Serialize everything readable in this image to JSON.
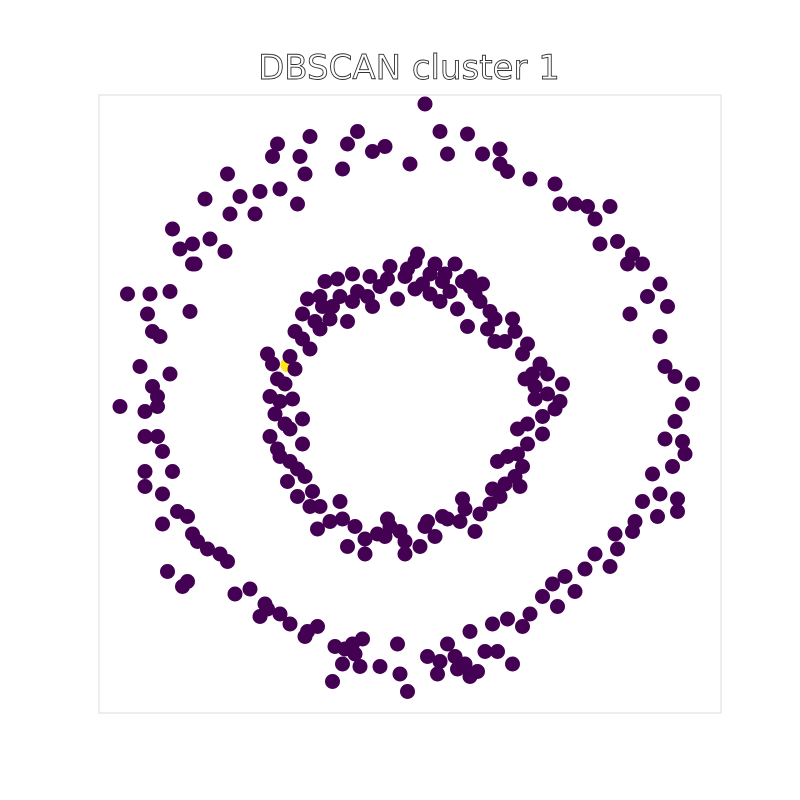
{
  "chart_data": {
    "type": "scatter",
    "title": "DBSCAN  cluster 1",
    "xlabel": "",
    "ylabel": "",
    "xlim": [
      -1.25,
      1.25
    ],
    "ylim": [
      -1.25,
      1.25
    ],
    "axes_visible": false,
    "grid": false,
    "legend": "none",
    "colors": {
      "cluster_member": "#ffe81a",
      "other": "#440154",
      "frame": "#dddddd"
    },
    "series": [
      {
        "label_value": 1,
        "points": [
          [
            -0.489,
            0.157
          ]
        ]
      },
      {
        "label_value": 0,
        "points": [
          [
            0.06,
            1.2
          ],
          [
            -0.21,
            1.09
          ],
          [
            0.12,
            1.09
          ],
          [
            0.23,
            1.08
          ],
          [
            -0.1,
            1.03
          ],
          [
            -0.25,
            1.04
          ],
          [
            -0.4,
            1.07
          ],
          [
            -0.53,
            1.04
          ],
          [
            -0.55,
            0.99
          ],
          [
            -0.44,
            0.99
          ],
          [
            -0.15,
            1.01
          ],
          [
            0.15,
            1.0
          ],
          [
            0.29,
            1.0
          ],
          [
            0.36,
            0.96
          ],
          [
            0.39,
            0.93
          ],
          [
            -0.73,
            0.92
          ],
          [
            -0.42,
            0.92
          ],
          [
            -0.27,
            0.94
          ],
          [
            0.0,
            0.96
          ],
          [
            0.36,
            1.02
          ],
          [
            0.48,
            0.9
          ],
          [
            0.58,
            0.88
          ],
          [
            -0.6,
            0.85
          ],
          [
            -0.52,
            0.86
          ],
          [
            -0.68,
            0.83
          ],
          [
            -0.45,
            0.8
          ],
          [
            0.6,
            0.8
          ],
          [
            0.71,
            0.79
          ],
          [
            0.8,
            0.79
          ],
          [
            -0.95,
            0.7
          ],
          [
            -0.82,
            0.82
          ],
          [
            -0.72,
            0.76
          ],
          [
            -0.62,
            0.76
          ],
          [
            0.66,
            0.8
          ],
          [
            0.74,
            0.74
          ],
          [
            -0.8,
            0.66
          ],
          [
            -0.87,
            0.64
          ],
          [
            -0.92,
            0.62
          ],
          [
            -0.74,
            0.61
          ],
          [
            0.76,
            0.64
          ],
          [
            0.83,
            0.65
          ],
          [
            0.89,
            0.6
          ],
          [
            -0.87,
            0.56
          ],
          [
            -0.86,
            0.56
          ],
          [
            0.87,
            0.56
          ],
          [
            0.93,
            0.56
          ],
          [
            -1.13,
            0.44
          ],
          [
            -1.04,
            0.44
          ],
          [
            -0.96,
            0.45
          ],
          [
            0.95,
            0.43
          ],
          [
            1.0,
            0.48
          ],
          [
            -1.05,
            0.36
          ],
          [
            -0.88,
            0.37
          ],
          [
            0.88,
            0.36
          ],
          [
            1.03,
            0.39
          ],
          [
            -1.03,
            0.29
          ],
          [
            -1.0,
            0.27
          ],
          [
            1.0,
            0.27
          ],
          [
            -1.08,
            0.15
          ],
          [
            -0.96,
            0.12
          ],
          [
            1.06,
            0.11
          ],
          [
            1.02,
            0.15
          ],
          [
            1.13,
            0.08
          ],
          [
            -1.03,
            0.07
          ],
          [
            -1.01,
            0.03
          ],
          [
            -1.16,
            -0.01
          ],
          [
            -1.06,
            -0.03
          ],
          [
            -1.01,
            -0.01
          ],
          [
            1.09,
            0.0
          ],
          [
            1.06,
            -0.07
          ],
          [
            1.09,
            -0.15
          ],
          [
            -1.06,
            -0.13
          ],
          [
            -1.01,
            -0.13
          ],
          [
            1.02,
            -0.14
          ],
          [
            -0.99,
            -0.19
          ],
          [
            1.1,
            -0.2
          ],
          [
            1.05,
            -0.25
          ],
          [
            0.97,
            -0.28
          ],
          [
            -1.06,
            -0.27
          ],
          [
            -0.95,
            -0.27
          ],
          [
            1.0,
            -0.36
          ],
          [
            -1.06,
            -0.33
          ],
          [
            -0.99,
            -0.36
          ],
          [
            1.07,
            -0.38
          ],
          [
            0.93,
            -0.39
          ],
          [
            -0.93,
            -0.43
          ],
          [
            0.99,
            -0.45
          ],
          [
            1.07,
            -0.43
          ],
          [
            0.9,
            -0.47
          ],
          [
            -0.89,
            -0.45
          ],
          [
            -0.99,
            -0.48
          ],
          [
            -0.87,
            -0.52
          ],
          [
            0.89,
            -0.51
          ],
          [
            0.82,
            -0.52
          ],
          [
            -0.85,
            -0.55
          ],
          [
            0.83,
            -0.58
          ],
          [
            0.74,
            -0.6
          ],
          [
            -0.81,
            -0.58
          ],
          [
            -0.73,
            -0.63
          ],
          [
            -0.76,
            -0.6
          ],
          [
            0.7,
            -0.66
          ],
          [
            0.8,
            -0.65
          ],
          [
            0.62,
            -0.69
          ],
          [
            -0.97,
            -0.67
          ],
          [
            -0.91,
            -0.73
          ],
          [
            -0.89,
            -0.71
          ],
          [
            0.57,
            -0.72
          ],
          [
            -0.64,
            -0.74
          ],
          [
            -0.7,
            -0.76
          ],
          [
            0.66,
            -0.75
          ],
          [
            0.53,
            -0.77
          ],
          [
            -0.58,
            -0.8
          ],
          [
            -0.52,
            -0.84
          ],
          [
            0.59,
            -0.81
          ],
          [
            -0.6,
            -0.85
          ],
          [
            -0.57,
            -0.82
          ],
          [
            0.48,
            -0.84
          ],
          [
            0.39,
            -0.86
          ],
          [
            -0.48,
            -0.88
          ],
          [
            -0.41,
            -0.91
          ],
          [
            -0.42,
            -0.93
          ],
          [
            -0.37,
            -0.89
          ],
          [
            0.33,
            -0.88
          ],
          [
            0.45,
            -0.89
          ],
          [
            0.24,
            -0.91
          ],
          [
            -0.23,
            -0.96
          ],
          [
            -0.3,
            -0.97
          ],
          [
            -0.22,
            -1.0
          ],
          [
            -0.05,
            -0.96
          ],
          [
            0.15,
            -0.96
          ],
          [
            0.3,
            -0.99
          ],
          [
            0.35,
            -0.99
          ],
          [
            -0.2,
            -1.05
          ],
          [
            -0.12,
            -1.05
          ],
          [
            -0.04,
            -1.08
          ],
          [
            0.18,
            -1.01
          ],
          [
            0.22,
            -1.04
          ],
          [
            -0.27,
            -1.04
          ],
          [
            -0.26,
            -0.98
          ],
          [
            -0.19,
            -0.94
          ],
          [
            0.07,
            -1.01
          ],
          [
            0.12,
            -1.03
          ],
          [
            0.11,
            -1.08
          ],
          [
            -0.01,
            -1.15
          ],
          [
            0.19,
            -1.06
          ],
          [
            0.24,
            -1.09
          ],
          [
            0.27,
            -1.07
          ],
          [
            0.41,
            -1.04
          ],
          [
            -0.31,
            -1.11
          ],
          [
            -0.23,
            0.52
          ],
          [
            -0.34,
            0.49
          ],
          [
            -0.16,
            0.51
          ],
          [
            -0.09,
            0.5
          ],
          [
            0.05,
            0.48
          ],
          [
            0.08,
            0.44
          ],
          [
            0.13,
            0.49
          ],
          [
            0.24,
            0.47
          ],
          [
            0.26,
            0.44
          ],
          [
            0.14,
            0.52
          ],
          [
            0.02,
            0.57
          ],
          [
            0.1,
            0.56
          ],
          [
            0.24,
            0.51
          ],
          [
            -0.41,
            0.42
          ],
          [
            -0.28,
            0.43
          ],
          [
            -0.17,
            0.43
          ],
          [
            -0.05,
            0.42
          ],
          [
            0.19,
            0.38
          ],
          [
            0.34,
            0.34
          ],
          [
            0.42,
            0.29
          ],
          [
            0.47,
            0.24
          ],
          [
            0.52,
            0.16
          ],
          [
            0.5,
            0.07
          ],
          [
            0.5,
            0.02
          ],
          [
            0.47,
            -0.08
          ],
          [
            0.47,
            -0.16
          ],
          [
            0.39,
            -0.21
          ],
          [
            0.42,
            -0.29
          ],
          [
            0.33,
            -0.34
          ],
          [
            0.22,
            -0.42
          ],
          [
            0.15,
            -0.46
          ],
          [
            0.06,
            -0.49
          ],
          [
            -0.04,
            -0.51
          ],
          [
            -0.13,
            -0.52
          ],
          [
            -0.18,
            -0.54
          ],
          [
            -0.27,
            -0.46
          ],
          [
            -0.36,
            -0.41
          ],
          [
            -0.42,
            -0.29
          ],
          [
            -0.48,
            -0.23
          ],
          [
            -0.43,
            -0.16
          ],
          [
            -0.5,
            -0.08
          ],
          [
            -0.47,
            0.02
          ],
          [
            -0.53,
            0.1
          ],
          [
            -0.48,
            0.19
          ],
          [
            -0.43,
            0.26
          ],
          [
            -0.36,
            0.3
          ],
          [
            -0.31,
            0.39
          ],
          [
            -0.29,
            0.5
          ],
          [
            -0.21,
            0.45
          ],
          [
            -0.08,
            0.55
          ],
          [
            0.02,
            0.46
          ],
          [
            -0.02,
            0.51
          ],
          [
            0.16,
            0.45
          ],
          [
            0.28,
            0.41
          ],
          [
            0.31,
            0.3
          ],
          [
            0.38,
            0.25
          ],
          [
            0.45,
            0.2
          ],
          [
            0.55,
            0.12
          ],
          [
            0.61,
            0.08
          ],
          [
            0.55,
            0.04
          ],
          [
            0.58,
            -0.02
          ],
          [
            0.53,
            -0.12
          ],
          [
            0.43,
            -0.1
          ],
          [
            0.43,
            -0.2
          ],
          [
            0.38,
            -0.32
          ],
          [
            0.32,
            -0.4
          ],
          [
            0.28,
            -0.44
          ],
          [
            0.2,
            -0.47
          ],
          [
            0.1,
            -0.53
          ],
          [
            -0.02,
            -0.55
          ],
          [
            -0.1,
            -0.53
          ],
          [
            -0.22,
            -0.49
          ],
          [
            -0.32,
            -0.47
          ],
          [
            -0.39,
            -0.35
          ],
          [
            -0.45,
            -0.26
          ],
          [
            -0.52,
            -0.21
          ],
          [
            -0.56,
            -0.13
          ],
          [
            -0.54,
            -0.04
          ],
          [
            -0.56,
            0.03
          ],
          [
            -0.5,
            0.08
          ],
          [
            -0.46,
            0.14
          ],
          [
            -0.4,
            0.22
          ],
          [
            -0.38,
            0.33
          ],
          [
            -0.35,
            0.39
          ],
          [
            -0.23,
            0.41
          ],
          [
            -0.12,
            0.47
          ],
          [
            -0.01,
            0.54
          ],
          [
            0.08,
            0.52
          ],
          [
            0.21,
            0.49
          ],
          [
            0.34,
            0.25
          ],
          [
            0.49,
            0.12
          ],
          [
            0.53,
            -0.05
          ],
          [
            0.45,
            -0.25
          ],
          [
            0.36,
            -0.37
          ],
          [
            0.26,
            -0.51
          ],
          [
            0.07,
            -0.47
          ],
          [
            -0.08,
            -0.49
          ],
          [
            -0.25,
            -0.57
          ],
          [
            -0.37,
            -0.5
          ],
          [
            -0.45,
            -0.37
          ],
          [
            -0.49,
            -0.31
          ],
          [
            -0.43,
            -0.06
          ],
          [
            -0.52,
            0.01
          ],
          [
            -0.55,
            0.16
          ],
          [
            -0.46,
            0.29
          ],
          [
            -0.32,
            0.34
          ],
          [
            -0.25,
            0.33
          ],
          [
            0.03,
            0.6
          ],
          [
            0.18,
            0.56
          ],
          [
            -0.15,
            0.39
          ],
          [
            0.23,
            0.31
          ],
          [
            0.32,
            0.37
          ],
          [
            0.41,
            0.34
          ],
          [
            0.46,
            0.1
          ],
          [
            0.6,
            0.01
          ],
          [
            0.44,
            -0.33
          ],
          [
            0.35,
            -0.23
          ],
          [
            0.21,
            -0.38
          ],
          [
            -0.02,
            -0.6
          ],
          [
            -0.18,
            -0.6
          ],
          [
            -0.28,
            -0.39
          ],
          [
            -0.4,
            -0.41
          ],
          [
            -0.53,
            -0.18
          ],
          [
            -0.48,
            -0.1
          ],
          [
            -0.57,
            0.2
          ],
          [
            -0.43,
            0.36
          ],
          [
            -0.36,
            0.43
          ],
          [
            0.12,
            0.41
          ],
          [
            0.29,
            0.48
          ],
          [
            -0.09,
            -0.46
          ],
          [
            0.04,
            -0.57
          ],
          [
            0.13,
            -0.45
          ]
        ]
      }
    ]
  }
}
